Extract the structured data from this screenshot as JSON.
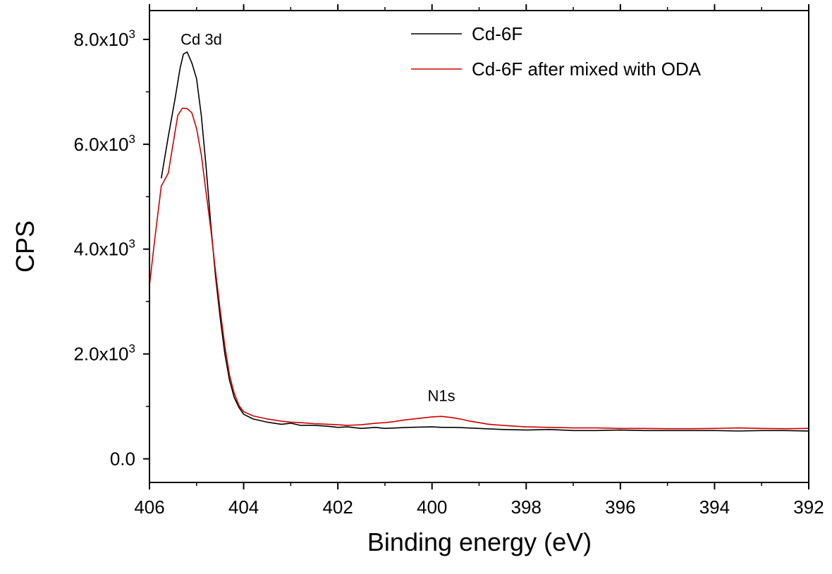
{
  "chart_data": {
    "type": "line",
    "xlabel": "Binding energy (eV)",
    "ylabel": "CPS",
    "xlim": [
      406,
      392
    ],
    "ylim": [
      -450,
      8550
    ],
    "x_ticks": [
      406,
      404,
      402,
      400,
      398,
      396,
      394,
      392
    ],
    "x_tick_labels": [
      "406",
      "404",
      "402",
      "400",
      "398",
      "396",
      "394",
      "392"
    ],
    "y_ticks": [
      {
        "value": 0,
        "mantissa": "0.0",
        "exp": ""
      },
      {
        "value": 2000,
        "mantissa": "2.0x10",
        "exp": "3"
      },
      {
        "value": 4000,
        "mantissa": "4.0x10",
        "exp": "3"
      },
      {
        "value": 6000,
        "mantissa": "6.0x10",
        "exp": "3"
      },
      {
        "value": 8000,
        "mantissa": "8.0x10",
        "exp": "3"
      }
    ],
    "annotations": [
      {
        "text": "Cd 3d",
        "x": 404.9,
        "y": 7900
      },
      {
        "text": "N1s",
        "x": 399.8,
        "y": 1100
      }
    ],
    "legend_position": "top-right",
    "series": [
      {
        "name": "Cd-6F",
        "color": "#000000",
        "points": [
          [
            405.75,
            5350
          ],
          [
            405.6,
            6150
          ],
          [
            405.45,
            6900
          ],
          [
            405.35,
            7450
          ],
          [
            405.28,
            7720
          ],
          [
            405.2,
            7760
          ],
          [
            405.1,
            7550
          ],
          [
            405.0,
            7250
          ],
          [
            404.9,
            6550
          ],
          [
            404.8,
            5600
          ],
          [
            404.7,
            4500
          ],
          [
            404.6,
            3500
          ],
          [
            404.5,
            2700
          ],
          [
            404.4,
            2000
          ],
          [
            404.3,
            1500
          ],
          [
            404.2,
            1170
          ],
          [
            404.1,
            980
          ],
          [
            404.0,
            850
          ],
          [
            403.8,
            760
          ],
          [
            403.5,
            700
          ],
          [
            403.2,
            660
          ],
          [
            403.0,
            680
          ],
          [
            402.8,
            640
          ],
          [
            402.5,
            640
          ],
          [
            402.2,
            620
          ],
          [
            402.0,
            600
          ],
          [
            401.8,
            610
          ],
          [
            401.5,
            580
          ],
          [
            401.2,
            600
          ],
          [
            401.0,
            580
          ],
          [
            400.5,
            600
          ],
          [
            400.0,
            610
          ],
          [
            399.8,
            600
          ],
          [
            399.5,
            600
          ],
          [
            399.0,
            580
          ],
          [
            398.5,
            560
          ],
          [
            398.0,
            550
          ],
          [
            397.5,
            560
          ],
          [
            397.0,
            540
          ],
          [
            396.5,
            540
          ],
          [
            396.0,
            550
          ],
          [
            395.5,
            540
          ],
          [
            395.0,
            540
          ],
          [
            394.5,
            540
          ],
          [
            394.0,
            540
          ],
          [
            393.5,
            530
          ],
          [
            393.0,
            540
          ],
          [
            392.5,
            540
          ],
          [
            392.0,
            530
          ]
        ]
      },
      {
        "name": "Cd-6F after mixed with ODA",
        "color": "#cc0000",
        "points": [
          [
            406.0,
            3300
          ],
          [
            405.9,
            4100
          ],
          [
            405.75,
            5200
          ],
          [
            405.6,
            5450
          ],
          [
            405.5,
            6000
          ],
          [
            405.4,
            6550
          ],
          [
            405.3,
            6690
          ],
          [
            405.2,
            6680
          ],
          [
            405.1,
            6600
          ],
          [
            405.0,
            6300
          ],
          [
            404.9,
            5800
          ],
          [
            404.8,
            5100
          ],
          [
            404.7,
            4400
          ],
          [
            404.6,
            3600
          ],
          [
            404.5,
            2850
          ],
          [
            404.4,
            2150
          ],
          [
            404.3,
            1600
          ],
          [
            404.2,
            1250
          ],
          [
            404.1,
            1020
          ],
          [
            404.0,
            900
          ],
          [
            403.8,
            820
          ],
          [
            403.5,
            760
          ],
          [
            403.2,
            720
          ],
          [
            403.0,
            700
          ],
          [
            402.8,
            690
          ],
          [
            402.5,
            670
          ],
          [
            402.2,
            660
          ],
          [
            402.0,
            650
          ],
          [
            401.8,
            640
          ],
          [
            401.5,
            650
          ],
          [
            401.2,
            680
          ],
          [
            401.0,
            690
          ],
          [
            400.8,
            710
          ],
          [
            400.6,
            740
          ],
          [
            400.4,
            760
          ],
          [
            400.2,
            780
          ],
          [
            400.0,
            800
          ],
          [
            399.8,
            810
          ],
          [
            399.6,
            790
          ],
          [
            399.4,
            760
          ],
          [
            399.2,
            720
          ],
          [
            399.0,
            690
          ],
          [
            398.8,
            660
          ],
          [
            398.5,
            640
          ],
          [
            398.2,
            620
          ],
          [
            398.0,
            610
          ],
          [
            397.5,
            600
          ],
          [
            397.0,
            590
          ],
          [
            396.5,
            590
          ],
          [
            396.0,
            580
          ],
          [
            395.5,
            580
          ],
          [
            395.0,
            575
          ],
          [
            394.5,
            575
          ],
          [
            394.0,
            580
          ],
          [
            393.5,
            590
          ],
          [
            393.0,
            580
          ],
          [
            392.5,
            575
          ],
          [
            392.0,
            580
          ]
        ]
      }
    ]
  }
}
